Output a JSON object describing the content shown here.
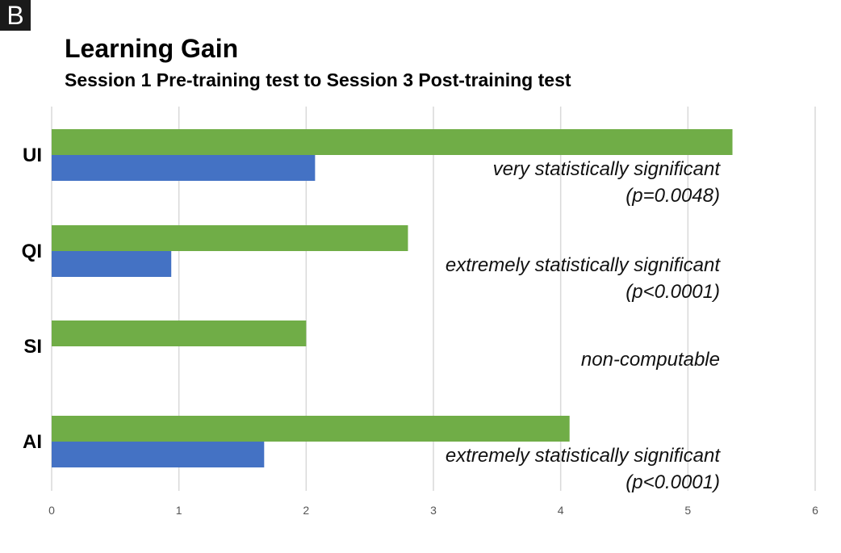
{
  "panel_label": "B",
  "chart_data": {
    "type": "bar",
    "orientation": "horizontal",
    "title": "Learning Gain",
    "subtitle": "Session 1 Pre-training test to Session 3 Post-training test",
    "categories": [
      "UI",
      "QI",
      "SI",
      "AI"
    ],
    "xlim": [
      0,
      6
    ],
    "x_ticks": [
      "0",
      "1",
      "2",
      "3",
      "4",
      "5",
      "6"
    ],
    "grid": "vertical",
    "series": [
      {
        "color": "#70ad47",
        "values": [
          5.35,
          2.8,
          2.0,
          4.07
        ]
      },
      {
        "color": "#4472c4",
        "values": [
          2.07,
          0.94,
          null,
          1.67
        ]
      }
    ],
    "annotations": [
      {
        "category": "UI",
        "lines": [
          "very statistically significant",
          "(p=0.0048)"
        ]
      },
      {
        "category": "QI",
        "lines": [
          "extremely statistically significant",
          "(p<0.0001)"
        ]
      },
      {
        "category": "SI",
        "lines": [
          "non-computable"
        ]
      },
      {
        "category": "AI",
        "lines": [
          "extremely statistically significant",
          "(p<0.0001)"
        ]
      }
    ]
  }
}
